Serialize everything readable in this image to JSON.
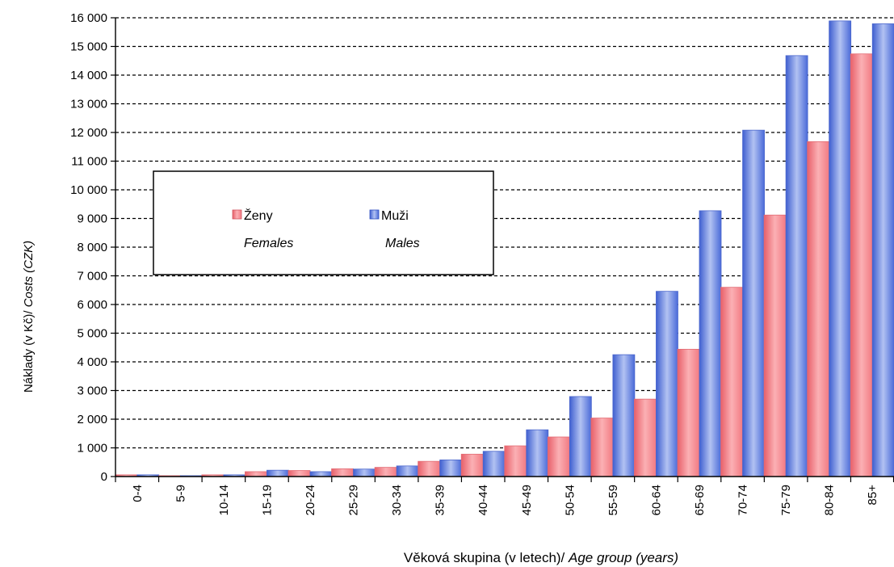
{
  "chart_data": {
    "type": "bar",
    "categories": [
      "0-4",
      "5-9",
      "10-14",
      "15-19",
      "20-24",
      "25-29",
      "30-34",
      "35-39",
      "40-44",
      "45-49",
      "50-54",
      "55-59",
      "60-64",
      "65-69",
      "70-74",
      "75-79",
      "80-84",
      "85+"
    ],
    "series": [
      {
        "name": "Ženy",
        "name_en": "Females",
        "color": "#f7868c",
        "values": [
          60,
          30,
          60,
          170,
          210,
          270,
          320,
          530,
          780,
          1070,
          1380,
          2040,
          2700,
          4440,
          6600,
          9120,
          11680,
          14740
        ]
      },
      {
        "name": "Muži",
        "name_en": "Males",
        "color": "#5c7ee0",
        "values": [
          60,
          30,
          60,
          220,
          170,
          260,
          370,
          580,
          880,
          1630,
          2790,
          4250,
          6460,
          9270,
          12080,
          14680,
          15890,
          15790
        ]
      }
    ],
    "ylim": [
      0,
      16000
    ],
    "yticks": [
      "0",
      "1 000",
      "2 000",
      "3 000",
      "4 000",
      "5 000",
      "6 000",
      "7 000",
      "8 000",
      "9 000",
      "10 000",
      "11 000",
      "12 000",
      "13 000",
      "14 000",
      "15 000",
      "16 000"
    ],
    "ylabel_prefix": "Náklady (v Kč)/ ",
    "ylabel_italic": "Costs (CZK)",
    "xlabel_prefix": "Věková skupina (v letech)/ ",
    "xlabel_italic": "Age group (years)",
    "grid": true,
    "legend_position": "upper-left"
  }
}
